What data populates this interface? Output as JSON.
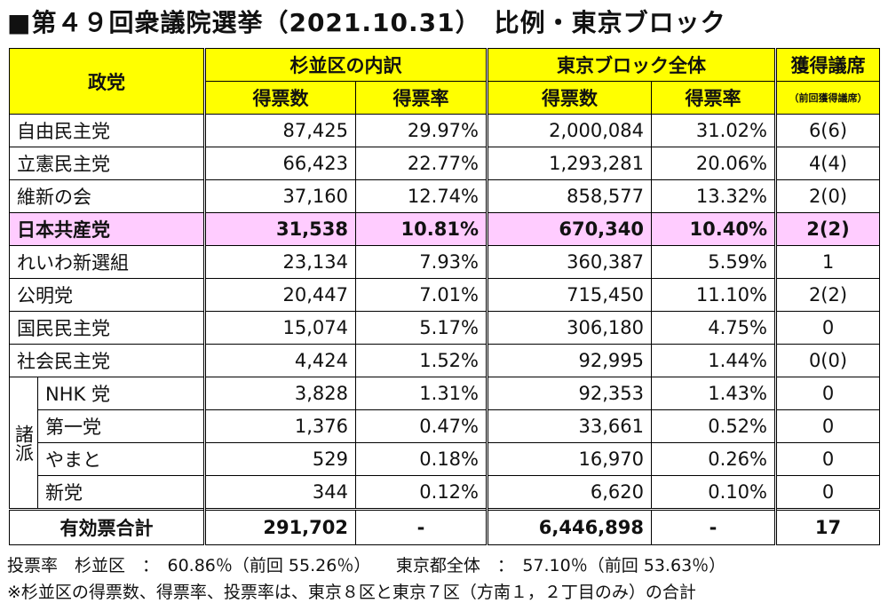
{
  "title": "■第４９回衆議院選挙（2021.10.31）　比例・東京ブロック",
  "header": {
    "party": "政党",
    "suginami": "杉並区の内訳",
    "tokyo": "東京ブロック全体",
    "seats": "獲得議席",
    "votes": "得票数",
    "rate": "得票率",
    "votes2": "得票数",
    "rate2": "得票率",
    "prev_seats": "（前回獲得議席）"
  },
  "rows": [
    {
      "party": "自由民主党",
      "s_votes": "87,425",
      "s_rate": "29.97%",
      "t_votes": "2,000,084",
      "t_rate": "31.02%",
      "seats": "6(6)"
    },
    {
      "party": "立憲民主党",
      "s_votes": "66,423",
      "s_rate": "22.77%",
      "t_votes": "1,293,281",
      "t_rate": "20.06%",
      "seats": "4(4)"
    },
    {
      "party": "維新の会",
      "s_votes": "37,160",
      "s_rate": "12.74%",
      "t_votes": "858,577",
      "t_rate": "13.32%",
      "seats": "2(0)"
    },
    {
      "party": "日本共産党",
      "s_votes": "31,538",
      "s_rate": "10.81%",
      "t_votes": "670,340",
      "t_rate": "10.40%",
      "seats": "2(2)"
    },
    {
      "party": "れいわ新選組",
      "s_votes": "23,134",
      "s_rate": "7.93%",
      "t_votes": "360,387",
      "t_rate": "5.59%",
      "seats": "1"
    },
    {
      "party": "公明党",
      "s_votes": "20,447",
      "s_rate": "7.01%",
      "t_votes": "715,450",
      "t_rate": "11.10%",
      "seats": "2(2)"
    },
    {
      "party": "国民民主党",
      "s_votes": "15,074",
      "s_rate": "5.17%",
      "t_votes": "306,180",
      "t_rate": "4.75%",
      "seats": "0"
    },
    {
      "party": "社会民主党",
      "s_votes": "4,424",
      "s_rate": "1.52%",
      "t_votes": "92,995",
      "t_rate": "1.44%",
      "seats": "0(0)"
    }
  ],
  "minor_group_label": "諸派",
  "minor_rows": [
    {
      "party": "NHK 党",
      "s_votes": "3,828",
      "s_rate": "1.31%",
      "t_votes": "92,353",
      "t_rate": "1.43%",
      "seats": "0"
    },
    {
      "party": "第一党",
      "s_votes": "1,376",
      "s_rate": "0.47%",
      "t_votes": "33,661",
      "t_rate": "0.52%",
      "seats": "0"
    },
    {
      "party": "やまと",
      "s_votes": "529",
      "s_rate": "0.18%",
      "t_votes": "16,970",
      "t_rate": "0.26%",
      "seats": "0"
    },
    {
      "party": "新党",
      "s_votes": "344",
      "s_rate": "0.12%",
      "t_votes": "6,620",
      "t_rate": "0.10%",
      "seats": "0"
    }
  ],
  "total": {
    "label": "有効票合計",
    "s_votes": "291,702",
    "s_rate": "-",
    "t_votes": "6,446,898",
    "t_rate": "-",
    "seats": "17"
  },
  "notes": {
    "turnout": "投票率　杉並区　：　60.86％（前回 55.26％）　　東京都全体　：　57.10％（前回 53.63％）",
    "footnote": "※杉並区の得票数、得票率、投票率は、東京８区と東京７区（方南１，２丁目のみ）の合計"
  },
  "colors": {
    "header_bg": "#ffff00",
    "highlight_bg": "#ffccff"
  }
}
